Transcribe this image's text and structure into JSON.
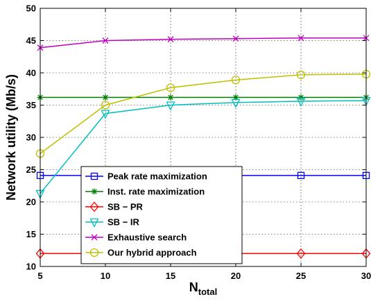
{
  "chart_data": {
    "type": "line",
    "xlabel": "N",
    "xlabel_sub": "total",
    "ylabel": "Network utility (Mb/s)",
    "x": [
      5,
      10,
      15,
      20,
      25,
      30
    ],
    "xlim": [
      5,
      30
    ],
    "ylim": [
      10,
      50
    ],
    "xticks": [
      5,
      10,
      15,
      20,
      25,
      30
    ],
    "yticks": [
      10,
      15,
      20,
      25,
      30,
      35,
      40,
      45,
      50
    ],
    "grid": true,
    "legend_position": "lower-left",
    "series": [
      {
        "name": "Peak rate maximization",
        "color": "#0000ff",
        "marker": "square",
        "x": [
          5,
          10,
          15,
          20,
          25,
          30
        ],
        "values": [
          24.1,
          24.1,
          24.1,
          24.1,
          24.1,
          24.1
        ],
        "marker_x": [
          5,
          25,
          30
        ]
      },
      {
        "name": "Inst. rate maximization",
        "color": "#008000",
        "marker": "star",
        "x": [
          5,
          10,
          15,
          20,
          25,
          30
        ],
        "values": [
          36.2,
          36.2,
          36.2,
          36.2,
          36.2,
          36.2
        ],
        "marker_x": [
          5,
          10,
          15,
          20,
          25,
          30
        ]
      },
      {
        "name": "SB − PR",
        "color": "#ff0000",
        "marker": "diamond",
        "x": [
          5,
          10,
          15,
          20,
          25,
          30
        ],
        "values": [
          12.0,
          12.0,
          12.0,
          12.0,
          12.0,
          12.0
        ],
        "marker_x": [
          5,
          25,
          30
        ]
      },
      {
        "name": "SB − IR",
        "color": "#00bfbf",
        "marker": "triangle-down",
        "x": [
          5,
          10,
          15,
          20,
          25,
          30
        ],
        "values": [
          21.3,
          33.7,
          35.0,
          35.4,
          35.6,
          35.7
        ],
        "marker_x": [
          5,
          10,
          15,
          20,
          25,
          30
        ]
      },
      {
        "name": "Exhaustive search",
        "color": "#bf00bf",
        "marker": "x",
        "x": [
          5,
          10,
          15,
          20,
          25,
          30
        ],
        "values": [
          43.9,
          45.0,
          45.2,
          45.3,
          45.4,
          45.4
        ],
        "marker_x": [
          5,
          10,
          15,
          20,
          25,
          30
        ]
      },
      {
        "name": "Our hybrid approach",
        "color": "#bfbf00",
        "marker": "circle",
        "x": [
          5,
          10,
          15,
          20,
          25,
          30
        ],
        "values": [
          27.5,
          35.0,
          37.7,
          38.9,
          39.7,
          39.8
        ],
        "marker_x": [
          5,
          10,
          15,
          20,
          25,
          30
        ]
      }
    ]
  }
}
